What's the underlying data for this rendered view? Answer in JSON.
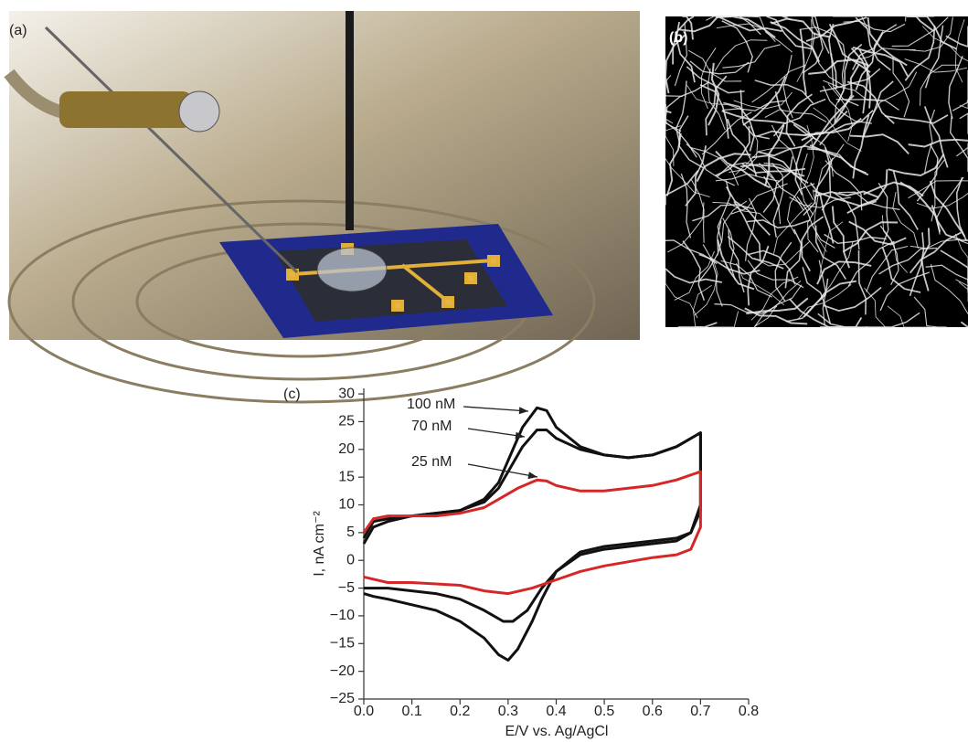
{
  "panels": {
    "a": {
      "label": "(a)"
    },
    "b": {
      "label": "(b)"
    }
  },
  "chart_data": {
    "type": "line",
    "panel_label": "(c)",
    "x_label": "E/V vs. Ag/AgCl",
    "y_label": "I, nA cm⁻²",
    "xlim": [
      0,
      0.8
    ],
    "ylim": [
      -25,
      31
    ],
    "xticks": [
      {
        "value": 0,
        "label": "0.0"
      },
      0.1,
      0.2,
      0.3,
      0.4,
      0.5,
      0.6,
      0.7,
      0.8
    ],
    "yticks": [
      {
        "value": -25,
        "label": "−25"
      },
      {
        "value": -20,
        "label": "−20"
      },
      {
        "value": -15,
        "label": "−15"
      },
      {
        "value": -10,
        "label": "−10"
      },
      {
        "value": -5,
        "label": "−5"
      },
      0,
      5,
      10,
      15,
      20,
      25,
      30
    ],
    "series": [
      {
        "name": "100 nM",
        "color": "#111111",
        "x": [
          0,
          0.02,
          0.05,
          0.1,
          0.15,
          0.2,
          0.25,
          0.28,
          0.3,
          0.33,
          0.36,
          0.38,
          0.4,
          0.45,
          0.5,
          0.55,
          0.6,
          0.65,
          0.7,
          0.7,
          0.68,
          0.65,
          0.6,
          0.5,
          0.45,
          0.4,
          0.37,
          0.35,
          0.32,
          0.3,
          0.28,
          0.25,
          0.2,
          0.15,
          0.1,
          0.05,
          0.02,
          0
        ],
        "values": [
          3,
          6,
          7,
          8,
          8.5,
          9,
          11,
          14,
          18,
          24,
          27.5,
          27,
          24,
          20.5,
          19,
          18.5,
          19,
          20.5,
          23,
          10,
          5,
          4,
          3.5,
          2.5,
          1.5,
          -2,
          -7,
          -11,
          -16,
          -18,
          -17,
          -14,
          -11,
          -9,
          -8,
          -7,
          -6.5,
          -6
        ]
      },
      {
        "name": "70 nM",
        "color": "#111111",
        "x": [
          0,
          0.02,
          0.05,
          0.1,
          0.15,
          0.2,
          0.25,
          0.28,
          0.3,
          0.33,
          0.36,
          0.38,
          0.4,
          0.45,
          0.5,
          0.55,
          0.6,
          0.65,
          0.7,
          0.7,
          0.68,
          0.65,
          0.6,
          0.5,
          0.45,
          0.4,
          0.37,
          0.34,
          0.31,
          0.29,
          0.25,
          0.2,
          0.15,
          0.1,
          0.05,
          0
        ],
        "values": [
          4,
          7,
          7.5,
          8,
          8.5,
          9,
          10.5,
          13,
          16,
          20.5,
          23.5,
          23.5,
          22,
          20,
          19,
          18.5,
          19,
          20.5,
          23,
          9,
          5,
          3.5,
          3,
          2,
          1,
          -2,
          -5,
          -9,
          -11,
          -11,
          -9,
          -7,
          -6,
          -5.5,
          -5,
          -5
        ]
      },
      {
        "name": "25 nM",
        "color": "#d62728",
        "x": [
          0,
          0.02,
          0.05,
          0.1,
          0.15,
          0.2,
          0.25,
          0.28,
          0.32,
          0.36,
          0.38,
          0.4,
          0.45,
          0.5,
          0.6,
          0.65,
          0.7,
          0.7,
          0.68,
          0.65,
          0.6,
          0.5,
          0.45,
          0.4,
          0.35,
          0.3,
          0.25,
          0.2,
          0.1,
          0.05,
          0
        ],
        "values": [
          5,
          7.5,
          8,
          8,
          8,
          8.5,
          9.5,
          11,
          13,
          14.5,
          14.3,
          13.5,
          12.5,
          12.5,
          13.5,
          14.5,
          16,
          6,
          2,
          1,
          0.5,
          -1,
          -2,
          -3.5,
          -5,
          -6,
          -5.5,
          -4.5,
          -4,
          -4,
          -3
        ]
      }
    ]
  }
}
